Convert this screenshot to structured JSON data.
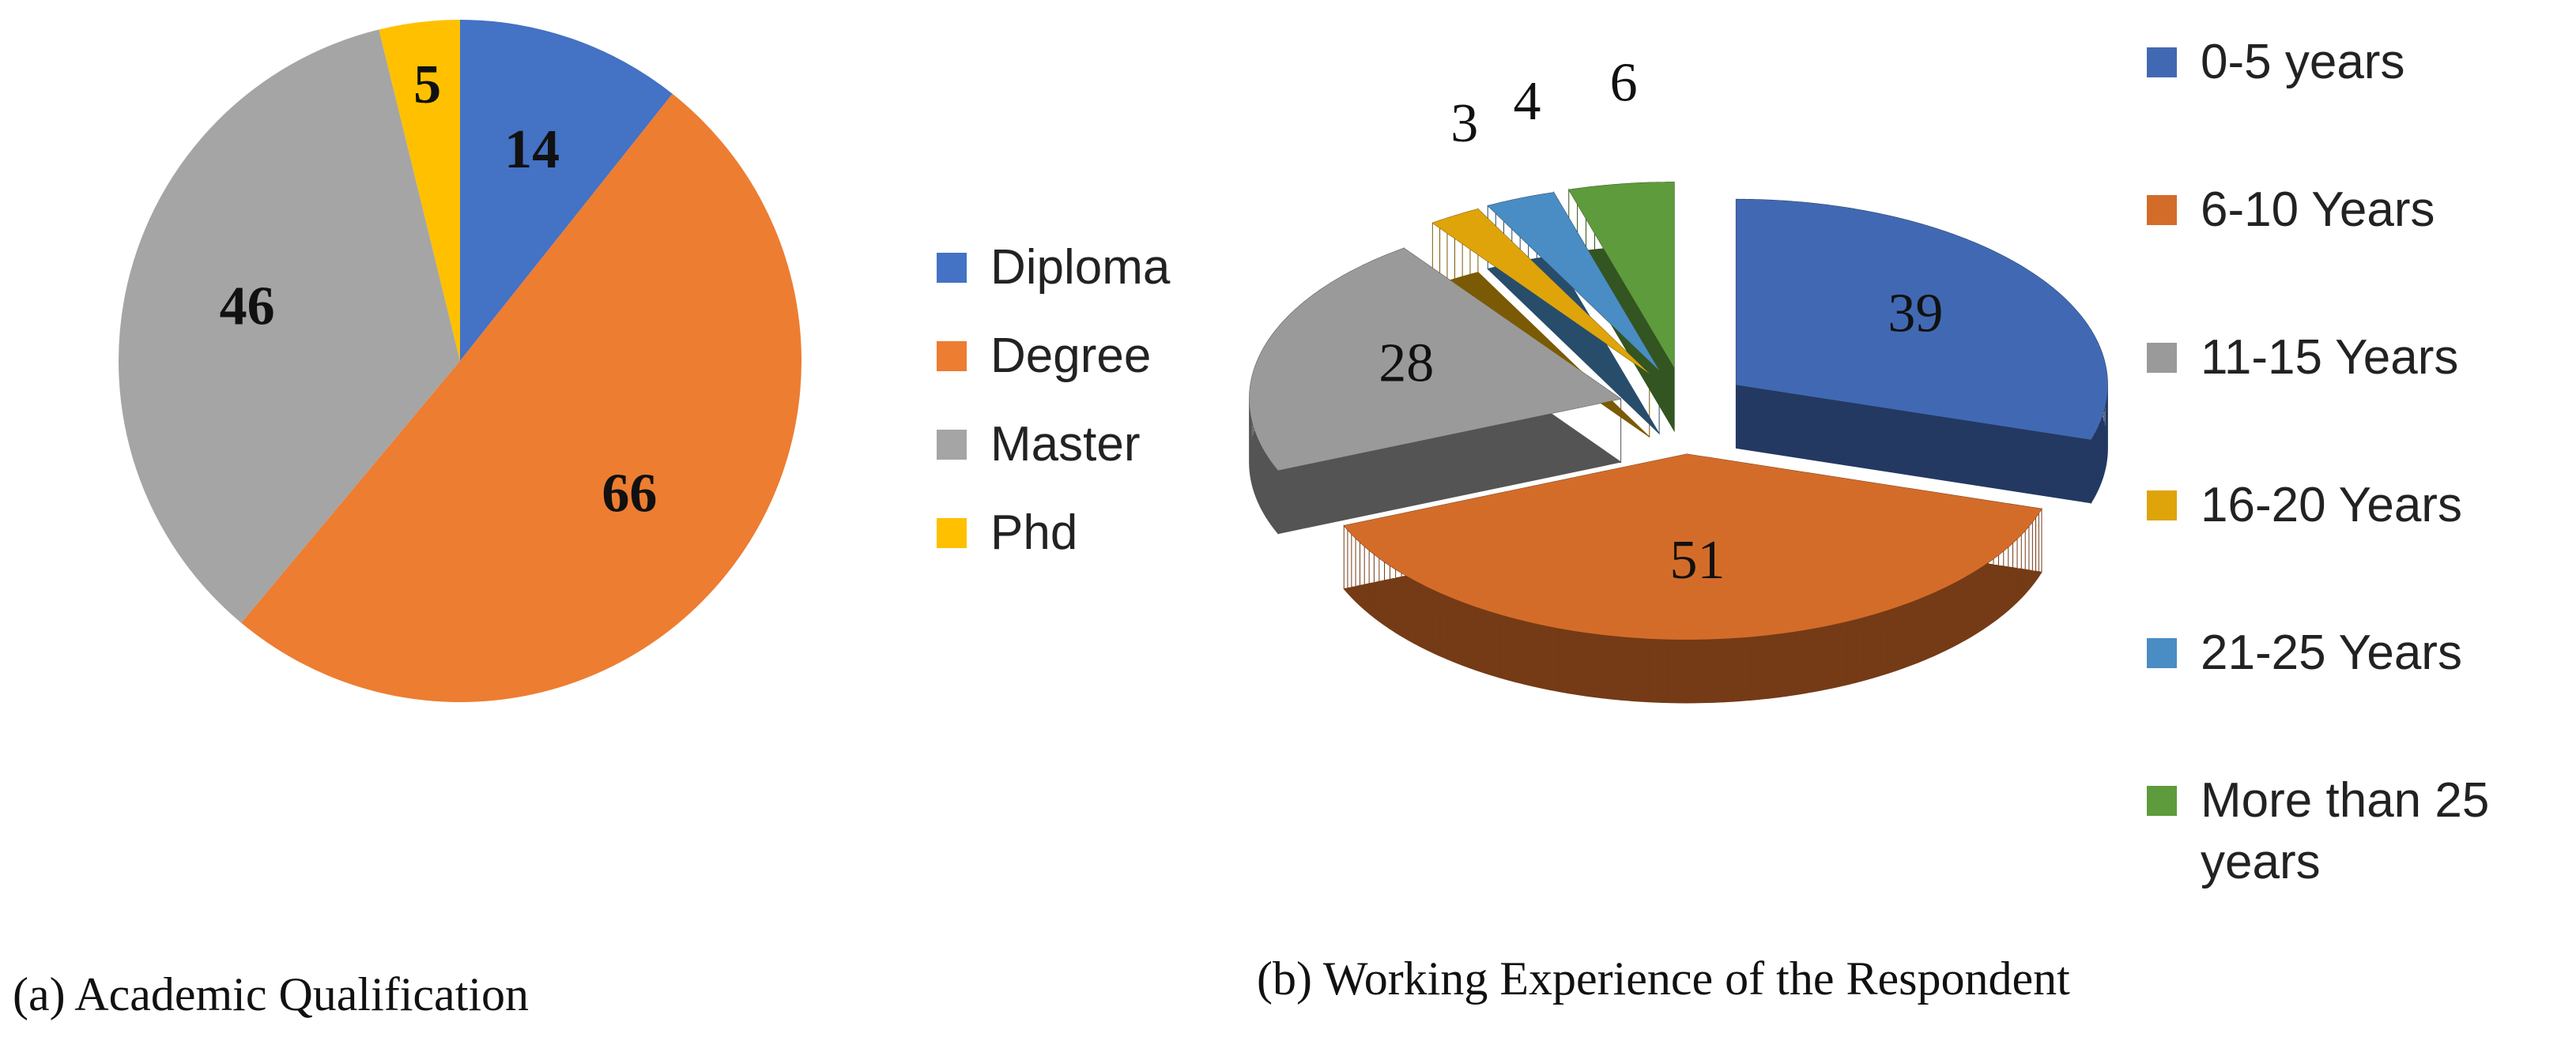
{
  "chart_data": [
    {
      "type": "pie",
      "caption": "(a) Academic Qualification",
      "categories": [
        "Diploma",
        "Degree",
        "Master",
        "Phd"
      ],
      "values": [
        14,
        66,
        46,
        5
      ],
      "colors": [
        "#4472c4",
        "#ed7d31",
        "#a5a5a5",
        "#ffc000"
      ],
      "legend": "right"
    },
    {
      "type": "pie3d",
      "caption": "(b) Working Experience of the Respondent",
      "categories": [
        "0-5 years",
        "6-10 Years",
        "11-15 Years",
        "16-20 Years",
        "21-25 Years",
        "More than 25 years"
      ],
      "values": [
        39,
        51,
        28,
        3,
        4,
        6
      ],
      "colors": [
        "#4169b3",
        "#d46c29",
        "#9a9a9a",
        "#dea40a",
        "#4a8cc4",
        "#5e9b3c"
      ],
      "legend": "right"
    }
  ]
}
